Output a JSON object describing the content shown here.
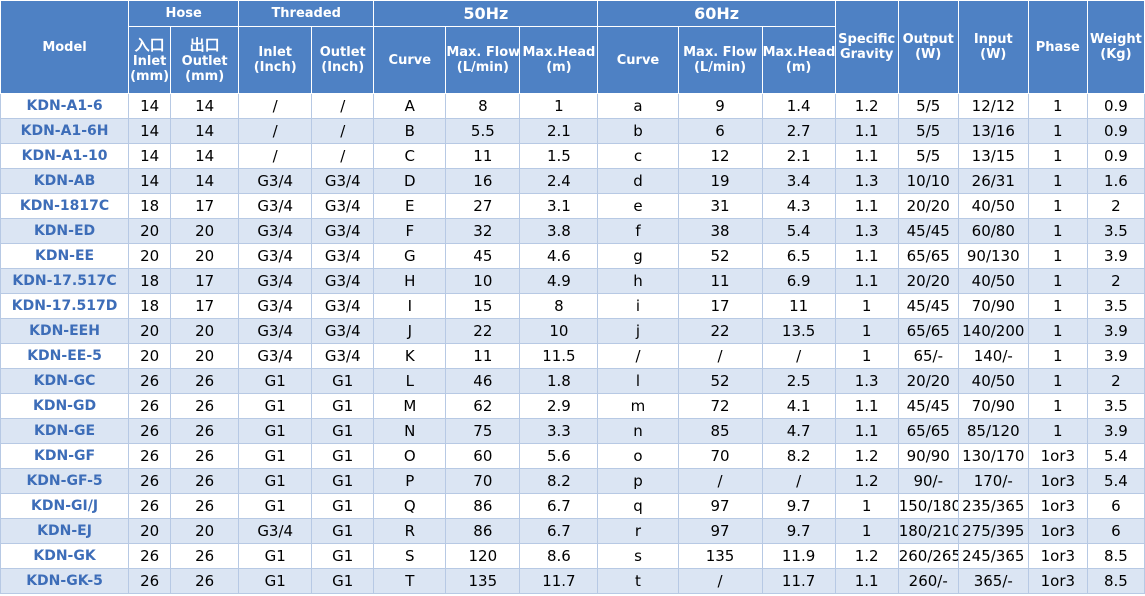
{
  "headers": {
    "model": "Model",
    "hose": "Hose",
    "threaded": "Threaded",
    "hz50": "50Hz",
    "hz60": "60Hz",
    "specific_gravity": [
      "Specific",
      "Gravity"
    ],
    "output": [
      "Output",
      "(W)"
    ],
    "input": [
      "Input",
      "(W)"
    ],
    "phase": "Phase",
    "weight": [
      "Weight",
      "(Kg)"
    ],
    "hose_inlet": [
      "入口",
      "Inlet",
      "(mm)"
    ],
    "hose_outlet": [
      "出口",
      "Outlet",
      "(mm)"
    ],
    "thr_inlet": [
      "Inlet",
      "(Inch)"
    ],
    "thr_outlet": [
      "Outlet",
      "(Inch)"
    ],
    "curve50": "Curve",
    "flow50": [
      "Max. Flow",
      "(L/min)"
    ],
    "head50": [
      "Max.Head",
      "(m)"
    ],
    "curve60": "Curve",
    "flow60": [
      "Max. Flow",
      "(L/min)"
    ],
    "head60": [
      "Max.Head",
      "(m)"
    ]
  },
  "rows": [
    [
      "KDN-A1-6",
      "14",
      "14",
      "/",
      "/",
      "A",
      "8",
      "1",
      "a",
      "9",
      "1.4",
      "1.2",
      "5/5",
      "12/12",
      "1",
      "0.9"
    ],
    [
      "KDN-A1-6H",
      "14",
      "14",
      "/",
      "/",
      "B",
      "5.5",
      "2.1",
      "b",
      "6",
      "2.7",
      "1.1",
      "5/5",
      "13/16",
      "1",
      "0.9"
    ],
    [
      "KDN-A1-10",
      "14",
      "14",
      "/",
      "/",
      "C",
      "11",
      "1.5",
      "c",
      "12",
      "2.1",
      "1.1",
      "5/5",
      "13/15",
      "1",
      "0.9"
    ],
    [
      "KDN-AB",
      "14",
      "14",
      "G3/4",
      "G3/4",
      "D",
      "16",
      "2.4",
      "d",
      "19",
      "3.4",
      "1.3",
      "10/10",
      "26/31",
      "1",
      "1.6"
    ],
    [
      "KDN-1817C",
      "18",
      "17",
      "G3/4",
      "G3/4",
      "E",
      "27",
      "3.1",
      "e",
      "31",
      "4.3",
      "1.1",
      "20/20",
      "40/50",
      "1",
      "2"
    ],
    [
      "KDN-ED",
      "20",
      "20",
      "G3/4",
      "G3/4",
      "F",
      "32",
      "3.8",
      "f",
      "38",
      "5.4",
      "1.3",
      "45/45",
      "60/80",
      "1",
      "3.5"
    ],
    [
      "KDN-EE",
      "20",
      "20",
      "G3/4",
      "G3/4",
      "G",
      "45",
      "4.6",
      "g",
      "52",
      "6.5",
      "1.1",
      "65/65",
      "90/130",
      "1",
      "3.9"
    ],
    [
      "KDN-17.517C",
      "18",
      "17",
      "G3/4",
      "G3/4",
      "H",
      "10",
      "4.9",
      "h",
      "11",
      "6.9",
      "1.1",
      "20/20",
      "40/50",
      "1",
      "2"
    ],
    [
      "KDN-17.517D",
      "18",
      "17",
      "G3/4",
      "G3/4",
      "I",
      "15",
      "8",
      "i",
      "17",
      "11",
      "1",
      "45/45",
      "70/90",
      "1",
      "3.5"
    ],
    [
      "KDN-EEH",
      "20",
      "20",
      "G3/4",
      "G3/4",
      "J",
      "22",
      "10",
      "j",
      "22",
      "13.5",
      "1",
      "65/65",
      "140/200",
      "1",
      "3.9"
    ],
    [
      "KDN-EE-5",
      "20",
      "20",
      "G3/4",
      "G3/4",
      "K",
      "11",
      "11.5",
      "/",
      "/",
      "/",
      "1",
      "65/-",
      "140/-",
      "1",
      "3.9"
    ],
    [
      "KDN-GC",
      "26",
      "26",
      "G1",
      "G1",
      "L",
      "46",
      "1.8",
      "l",
      "52",
      "2.5",
      "1.3",
      "20/20",
      "40/50",
      "1",
      "2"
    ],
    [
      "KDN-GD",
      "26",
      "26",
      "G1",
      "G1",
      "M",
      "62",
      "2.9",
      "m",
      "72",
      "4.1",
      "1.1",
      "45/45",
      "70/90",
      "1",
      "3.5"
    ],
    [
      "KDN-GE",
      "26",
      "26",
      "G1",
      "G1",
      "N",
      "75",
      "3.3",
      "n",
      "85",
      "4.7",
      "1.1",
      "65/65",
      "85/120",
      "1",
      "3.9"
    ],
    [
      "KDN-GF",
      "26",
      "26",
      "G1",
      "G1",
      "O",
      "60",
      "5.6",
      "o",
      "70",
      "8.2",
      "1.2",
      "90/90",
      "130/170",
      "1or3",
      "5.4"
    ],
    [
      "KDN-GF-5",
      "26",
      "26",
      "G1",
      "G1",
      "P",
      "70",
      "8.2",
      "p",
      "/",
      "/",
      "1.2",
      "90/-",
      "170/-",
      "1or3",
      "5.4"
    ],
    [
      "KDN-GI/J",
      "26",
      "26",
      "G1",
      "G1",
      "Q",
      "86",
      "6.7",
      "q",
      "97",
      "9.7",
      "1",
      "150/180",
      "235/365",
      "1or3",
      "6"
    ],
    [
      "KDN-EJ",
      "20",
      "20",
      "G3/4",
      "G1",
      "R",
      "86",
      "6.7",
      "r",
      "97",
      "9.7",
      "1",
      "180/210",
      "275/395",
      "1or3",
      "6"
    ],
    [
      "KDN-GK",
      "26",
      "26",
      "G1",
      "G1",
      "S",
      "120",
      "8.6",
      "s",
      "135",
      "11.9",
      "1.2",
      "260/265",
      "245/365",
      "1or3",
      "8.5"
    ],
    [
      "KDN-GK-5",
      "26",
      "26",
      "G1",
      "G1",
      "T",
      "135",
      "11.7",
      "t",
      "/",
      "11.7",
      "1.1",
      "260/-",
      "365/-",
      "1or3",
      "8.5"
    ]
  ]
}
